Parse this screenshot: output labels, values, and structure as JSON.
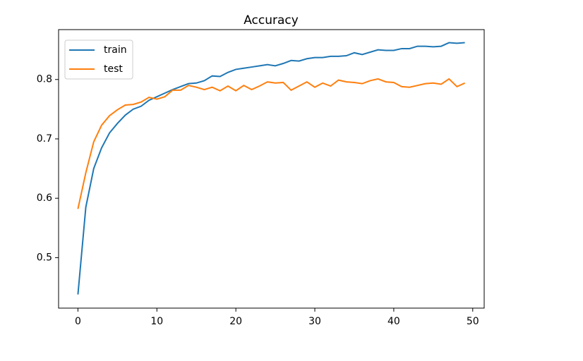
{
  "chart_data": {
    "type": "line",
    "title": "Accuracy",
    "x": [
      0,
      1,
      2,
      3,
      4,
      5,
      6,
      7,
      8,
      9,
      10,
      11,
      12,
      13,
      14,
      15,
      16,
      17,
      18,
      19,
      20,
      21,
      22,
      23,
      24,
      25,
      26,
      27,
      28,
      29,
      30,
      31,
      32,
      33,
      34,
      35,
      36,
      37,
      38,
      39,
      40,
      41,
      42,
      43,
      44,
      45,
      46,
      47,
      48,
      49
    ],
    "series": [
      {
        "name": "train",
        "color": "#1f77b4",
        "values": [
          0.438,
          0.585,
          0.65,
          0.685,
          0.71,
          0.726,
          0.74,
          0.75,
          0.755,
          0.765,
          0.771,
          0.777,
          0.783,
          0.788,
          0.793,
          0.794,
          0.798,
          0.806,
          0.805,
          0.812,
          0.817,
          0.819,
          0.821,
          0.823,
          0.825,
          0.823,
          0.827,
          0.832,
          0.831,
          0.835,
          0.837,
          0.837,
          0.839,
          0.839,
          0.84,
          0.845,
          0.842,
          0.846,
          0.85,
          0.849,
          0.849,
          0.852,
          0.852,
          0.856,
          0.856,
          0.855,
          0.856,
          0.862,
          0.861,
          0.862
        ]
      },
      {
        "name": "test",
        "color": "#ff7f0e",
        "values": [
          0.582,
          0.643,
          0.695,
          0.723,
          0.739,
          0.749,
          0.757,
          0.758,
          0.762,
          0.77,
          0.767,
          0.771,
          0.782,
          0.782,
          0.79,
          0.787,
          0.783,
          0.787,
          0.781,
          0.789,
          0.781,
          0.79,
          0.783,
          0.789,
          0.796,
          0.794,
          0.795,
          0.782,
          0.789,
          0.796,
          0.787,
          0.794,
          0.789,
          0.799,
          0.796,
          0.795,
          0.793,
          0.798,
          0.801,
          0.796,
          0.795,
          0.788,
          0.787,
          0.79,
          0.793,
          0.794,
          0.792,
          0.801,
          0.788,
          0.794
        ]
      }
    ],
    "xlim": [
      -2.45,
      51.45
    ],
    "xticks": [
      0,
      10,
      20,
      30,
      40,
      50
    ],
    "ylim": [
      0.415,
      0.884
    ],
    "yticks": [
      0.5,
      0.6,
      0.7,
      0.8
    ],
    "legend": "upper left"
  }
}
